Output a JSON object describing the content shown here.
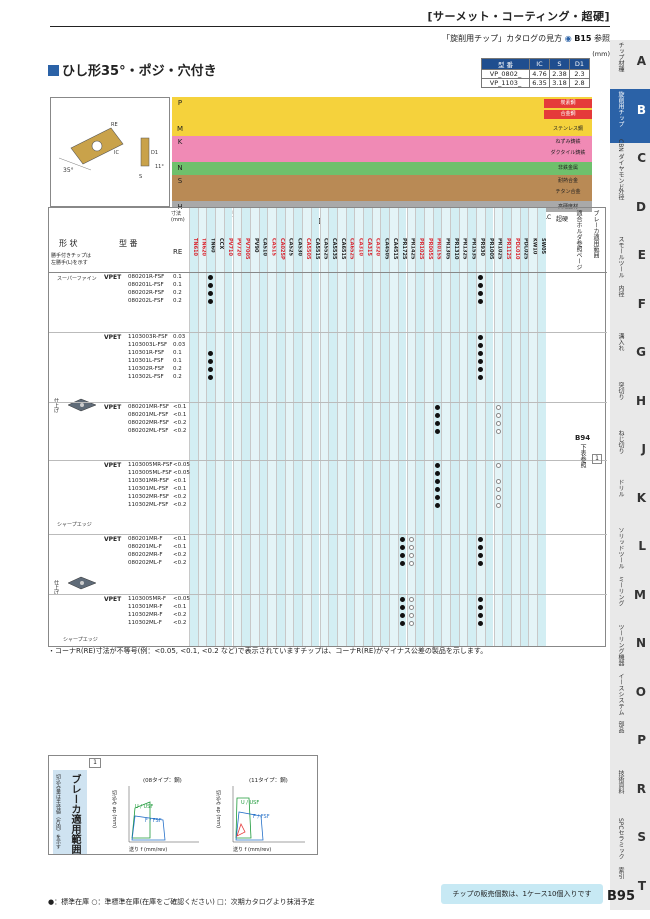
{
  "header": {
    "title": "[サーメット・コーティング・超硬]",
    "catalog": "「旋削用チップ」カタログの見方",
    "catalog_ref": "B15",
    "catalog_suffix": "参照",
    "unit": "(mm)"
  },
  "section": {
    "title": "ひし形35°・ポジ・穴付き"
  },
  "dimensions": {
    "headers": [
      "型 番",
      "IC",
      "S",
      "D1"
    ],
    "rows": [
      [
        "VP_0802_",
        "4.76",
        "2.38",
        "2.3"
      ],
      [
        "VP_1103_",
        "6.35",
        "3.18",
        "2.8"
      ]
    ]
  },
  "materials": [
    {
      "letter": "P",
      "color": "#f5d23c",
      "label": "炭素鋼",
      "label_bg": "#e53a3a",
      "label2": "合金鋼"
    },
    {
      "letter": "M",
      "color": "#f5d23c",
      "label": "ステンレス鋼"
    },
    {
      "letter": "K",
      "color": "#f08ab5",
      "label": "ねずみ鋳鉄",
      "label2": "ダクタイル鋳鉄"
    },
    {
      "letter": "N",
      "color": "#6fc06c",
      "label": "非鉄金属"
    },
    {
      "letter": "S",
      "color": "#b98a55",
      "label": "耐熱合金",
      "label2": "チタン合金"
    },
    {
      "letter": "H",
      "color": "#a9a9a9",
      "label": "高硬度材"
    }
  ],
  "table_head": {
    "shape": "形 状",
    "model": "型 番",
    "note1": "勝手付きチップは",
    "note2": "左勝手(L)を示す",
    "dimension": "寸法 (mm)",
    "re": "RE",
    "cermet": "サーメット",
    "cvd_short": "CVD サーメット",
    "megacoat_cermet": "MEGACOAT サーメット",
    "pvd_short": "PVD サーメット",
    "cvd": "CVDコーティング",
    "megacoat": "MEGACOAT",
    "megacoat_sub": "(PVDコーティング)",
    "pvd": "PVD",
    "pvd_sub": "コーティング",
    "dlc": "DLC",
    "carbide": "超硬",
    "holder": "適合ホルダ参照ページ",
    "breaker_range": "ブレーカ適用範囲"
  },
  "grades": [
    "TN610",
    "TN620",
    "TN60",
    "CCX",
    "PV710",
    "PV720",
    "PV7005",
    "PV90",
    "CA510",
    "CA515",
    "CA025P",
    "CA525",
    "CA530",
    "CA5505",
    "CA5515",
    "CA5525",
    "CA5535",
    "CA6515",
    "CA6525",
    "CA310",
    "CA315",
    "CA320",
    "CA4505",
    "CA4515",
    "PR1725",
    "PR1425",
    "PR1025",
    "PR005S",
    "PR015S",
    "PR1305",
    "PR1310",
    "PR1325",
    "PR1535",
    "PR930",
    "PR1005",
    "PR1025",
    "PR1125",
    "PDL010",
    "PDL025",
    "KW10",
    "SW05"
  ],
  "rows": {
    "group_labels": [
      "スーパーファイン",
      "シャープエッジ",
      "仕上げ",
      "仕上げ",
      "シャープエッジ",
      "精密仕上げ"
    ],
    "blocks": [
      {
        "prefix": "VPET",
        "codes": [
          "080201R-FSF",
          "080201L-FSF",
          "080202R-FSF",
          "080202L-FSF"
        ],
        "re": [
          "0.1",
          "0.1",
          "0.2",
          "0.2"
        ]
      },
      {
        "prefix": "VPET",
        "codes": [
          "1103003R-FSF",
          "1103003L-FSF",
          "110301R-FSF",
          "110301L-FSF",
          "110302R-FSF",
          "110302L-FSF"
        ],
        "re": [
          "0.03",
          "0.03",
          "0.1",
          "0.1",
          "0.2",
          "0.2"
        ]
      },
      {
        "prefix": "VPET",
        "codes": [
          "080201MR-FSF",
          "080201ML-FSF",
          "080202MR-FSF",
          "080202ML-FSF"
        ],
        "re": [
          "<0.1",
          "<0.1",
          "<0.2",
          "<0.2"
        ]
      },
      {
        "prefix": "VPET",
        "codes": [
          "1103005MR-FSF",
          "1103005ML-FSF",
          "110301MR-FSF",
          "110301ML-FSF",
          "110302MR-FSF",
          "110302ML-FSF"
        ],
        "re": [
          "<0.05",
          "<0.05",
          "<0.1",
          "<0.1",
          "<0.2",
          "<0.2"
        ]
      },
      {
        "prefix": "VPET",
        "codes": [
          "080201MR-F",
          "080201ML-F",
          "080202MR-F",
          "080202ML-F"
        ],
        "re": [
          "<0.1",
          "<0.1",
          "<0.2",
          "<0.2"
        ]
      },
      {
        "prefix": "VPET",
        "codes": [
          "1103005MR-F",
          "110301MR-F",
          "110302MR-F",
          "110302ML-F"
        ],
        "re": [
          "<0.05",
          "<0.1",
          "<0.2",
          "<0.2"
        ]
      }
    ],
    "holder_ref": "B94",
    "holder_ref2": "下表参照",
    "breaker_num": "1"
  },
  "note": "・コーナR(RE)寸法が不等号(例：<0.05, <0.1, <0.2 など)で表示されていますチップは、コーナR(RE)がマイナス公差の製品を示します。",
  "breaker": {
    "title": "ブレーカ適用範囲",
    "subtitle": "切込み量は半径値（片肉）を示す",
    "num": "1",
    "chart1_title": "(08タイプ：鋼)",
    "chart2_title": "(11タイプ：鋼)",
    "ylabel": "切込み ap (mm)",
    "xlabel": "送り f (mm/rev)",
    "yticks": [
      "3",
      "2",
      "1"
    ],
    "xticks": [
      "0.1",
      "0.2",
      "0.3",
      "0.4"
    ],
    "label_u": "U / USF",
    "label_f": "F / FSF"
  },
  "legend": "●：標準在庫 ○：準標準在庫(在庫をご確認ください) □：次期カタログより抹消予定",
  "sale_note": "チップの販売個数は、1ケース10個入りです",
  "page": "B95",
  "side_tabs": [
    {
      "letter": "A",
      "label": "チップ材種"
    },
    {
      "letter": "B",
      "label": "旋削用チップ",
      "active": true
    },
    {
      "letter": "C",
      "label": "CBN ダイヤモンド"
    },
    {
      "letter": "D",
      "label": "外径"
    },
    {
      "letter": "E",
      "label": "スモールツール"
    },
    {
      "letter": "F",
      "label": "内径"
    },
    {
      "letter": "G",
      "label": "溝入れ"
    },
    {
      "letter": "H",
      "label": "突切り"
    },
    {
      "letter": "J",
      "label": "ねじ切り"
    },
    {
      "letter": "K",
      "label": "ドリル"
    },
    {
      "letter": "L",
      "label": "ソリッドツール"
    },
    {
      "letter": "M",
      "label": "ミーリング"
    },
    {
      "letter": "N",
      "label": "ツーリング機器"
    },
    {
      "letter": "O",
      "label": "イースシステム"
    },
    {
      "letter": "P",
      "label": "部品"
    },
    {
      "letter": "R",
      "label": "技術資料"
    },
    {
      "letter": "S",
      "label": "SPCセラミック"
    },
    {
      "letter": "T",
      "label": "索引"
    }
  ]
}
